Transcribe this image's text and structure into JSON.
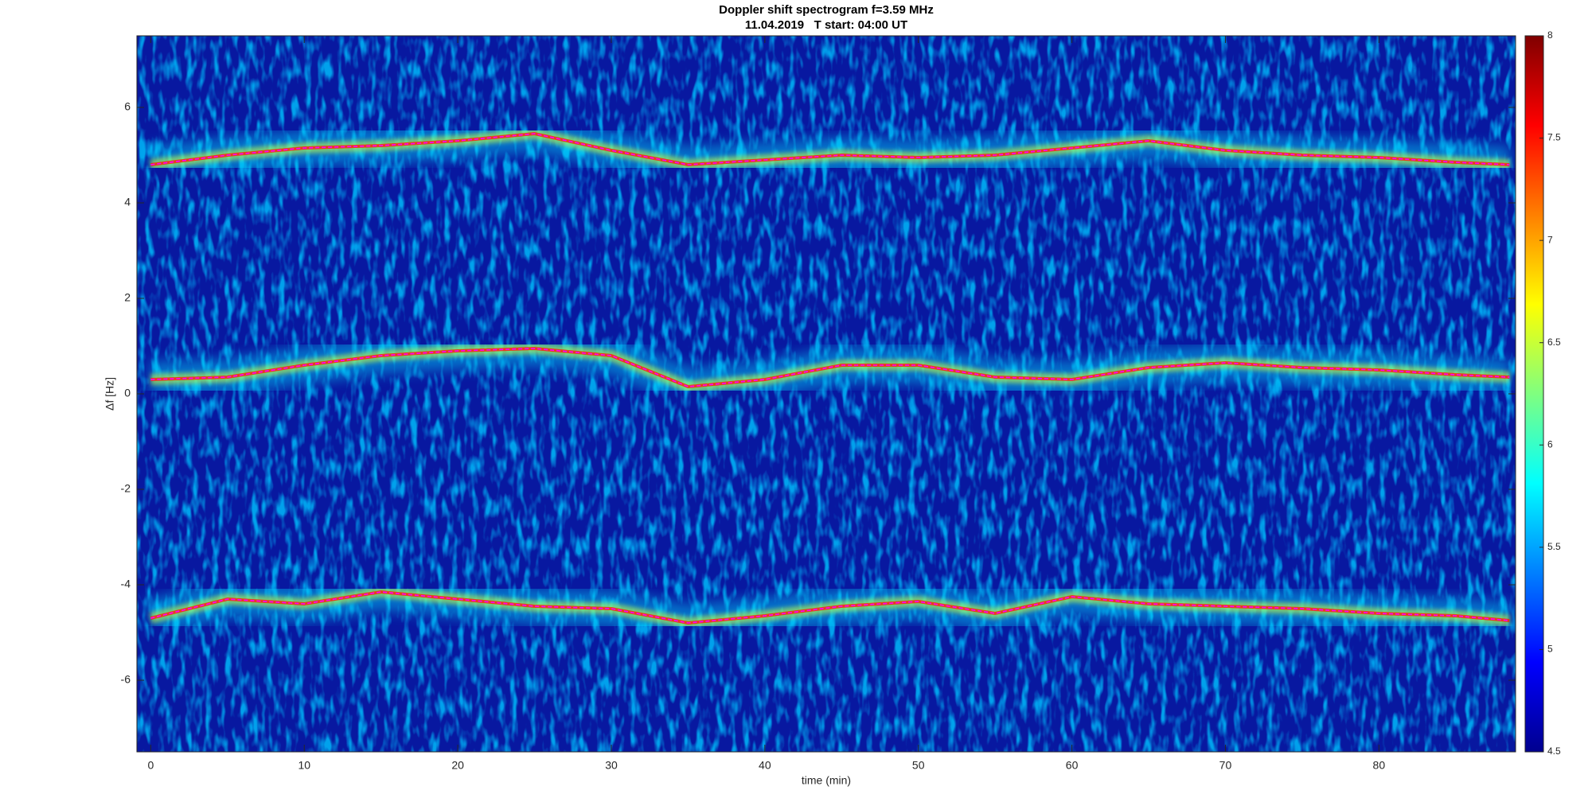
{
  "chart_data": {
    "type": "spectrogram",
    "title": "Doppler shift spectrogram f=3.59 MHz",
    "subtitle": "11.04.2019   T start: 04:00 UT",
    "xlabel": "time (min)",
    "ylabel": "Δf [Hz]",
    "xlim": [
      -0.9,
      88.9
    ],
    "ylim": [
      -7.5,
      7.5
    ],
    "xticks": [
      0,
      10,
      20,
      30,
      40,
      50,
      60,
      70,
      80
    ],
    "yticks": [
      -6,
      -4,
      -2,
      0,
      2,
      4,
      6
    ],
    "clim": [
      4.5,
      8
    ],
    "cticks": [
      4.5,
      5,
      5.5,
      6,
      6.5,
      7,
      7.5,
      8
    ],
    "x": [
      0,
      5,
      10,
      15,
      20,
      25,
      30,
      35,
      40,
      45,
      50,
      55,
      60,
      65,
      70,
      75,
      80,
      85,
      88.5
    ],
    "series": [
      {
        "color": "#ff00ff",
        "values": [
          4.8,
          5.0,
          5.15,
          5.2,
          5.3,
          5.45,
          5.1,
          4.8,
          4.9,
          5.0,
          4.95,
          5.0,
          5.15,
          5.3,
          5.1,
          5.0,
          4.95,
          4.85,
          4.8
        ]
      },
      {
        "color": "#ff00ff",
        "values": [
          0.3,
          0.35,
          0.6,
          0.8,
          0.9,
          0.95,
          0.8,
          0.15,
          0.3,
          0.6,
          0.6,
          0.35,
          0.3,
          0.55,
          0.65,
          0.55,
          0.5,
          0.4,
          0.35
        ]
      },
      {
        "color": "#ff00ff",
        "values": [
          -4.7,
          -4.3,
          -4.4,
          -4.15,
          -4.3,
          -4.45,
          -4.5,
          -4.8,
          -4.65,
          -4.45,
          -4.35,
          -4.6,
          -4.25,
          -4.4,
          -4.45,
          -4.5,
          -4.6,
          -4.65,
          -4.75
        ]
      }
    ]
  }
}
